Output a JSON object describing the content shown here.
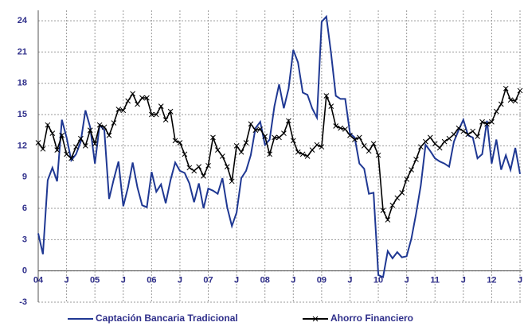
{
  "chart_data": {
    "type": "line",
    "categories": [
      "04",
      null,
      null,
      null,
      null,
      null,
      "J",
      null,
      null,
      null,
      null,
      null,
      "05",
      null,
      null,
      null,
      null,
      null,
      "J",
      null,
      null,
      null,
      null,
      null,
      "06",
      null,
      null,
      null,
      null,
      null,
      "J",
      null,
      null,
      null,
      null,
      null,
      "07",
      null,
      null,
      null,
      null,
      null,
      "J",
      null,
      null,
      null,
      null,
      null,
      "08",
      null,
      null,
      null,
      null,
      null,
      "J",
      null,
      null,
      null,
      null,
      null,
      "09",
      null,
      null,
      null,
      null,
      null,
      "J",
      null,
      null,
      null,
      null,
      null,
      "10",
      null,
      null,
      null,
      null,
      null,
      "J",
      null,
      null,
      null,
      null,
      null,
      "11",
      null,
      null,
      null,
      null,
      null,
      "J",
      null,
      null,
      null,
      null,
      null,
      "12",
      null,
      null,
      null,
      null,
      null,
      "J"
    ],
    "series": [
      {
        "name": "Captación Bancaria Tradicional",
        "color": "#1f3893",
        "marker": null,
        "values": [
          3.6,
          1.6,
          8.7,
          9.9,
          8.6,
          14.5,
          12.8,
          10.6,
          11.2,
          12.4,
          15.4,
          13.8,
          10.3,
          14.0,
          13.5,
          6.9,
          8.8,
          10.5,
          6.2,
          8.0,
          10.4,
          8.0,
          6.3,
          6.1,
          9.5,
          7.6,
          8.3,
          6.5,
          8.7,
          10.4,
          9.6,
          9.4,
          8.4,
          6.6,
          8.4,
          6.0,
          7.9,
          7.7,
          7.4,
          8.9,
          6.1,
          4.3,
          5.6,
          8.9,
          9.6,
          11.1,
          13.7,
          14.3,
          12.1,
          12.6,
          15.8,
          17.9,
          15.6,
          17.5,
          21.2,
          20.0,
          17.1,
          16.9,
          15.6,
          14.7,
          23.9,
          24.4,
          20.9,
          16.8,
          16.5,
          16.5,
          13.2,
          12.8,
          10.3,
          9.8,
          7.4,
          7.5,
          -0.4,
          -0.6,
          1.9,
          1.2,
          1.8,
          1.3,
          1.4,
          3.1,
          5.5,
          8.2,
          12.1,
          11.5,
          10.8,
          10.5,
          10.3,
          10.0,
          12.4,
          13.5,
          14.5,
          13.0,
          12.8,
          10.8,
          11.2,
          14.4,
          10.3,
          12.6,
          9.7,
          11.1,
          9.7,
          11.8,
          9.3
        ]
      },
      {
        "name": "Ahorro Financiero",
        "color": "#000000",
        "marker": "x",
        "values": [
          12.3,
          11.7,
          14.0,
          13.2,
          11.6,
          13.0,
          11.2,
          10.8,
          11.9,
          12.7,
          12.0,
          13.5,
          12.2,
          14.0,
          13.8,
          13.0,
          14.2,
          15.5,
          15.4,
          16.3,
          17.0,
          16.0,
          16.6,
          16.6,
          15.0,
          15.0,
          15.8,
          14.5,
          15.3,
          12.5,
          12.3,
          11.2,
          9.9,
          9.6,
          10.0,
          9.1,
          10.1,
          12.8,
          11.6,
          11.0,
          10.0,
          8.6,
          12.0,
          11.4,
          12.3,
          14.1,
          13.5,
          13.6,
          12.9,
          11.2,
          12.8,
          12.8,
          13.2,
          14.4,
          12.5,
          11.4,
          11.2,
          11.0,
          11.6,
          12.1,
          11.9,
          16.8,
          15.8,
          13.9,
          13.7,
          13.6,
          13.0,
          12.6,
          12.8,
          12.0,
          11.5,
          12.2,
          11.1,
          5.8,
          4.9,
          6.3,
          7.0,
          7.5,
          8.8,
          9.7,
          10.7,
          11.9,
          12.4,
          12.8,
          12.2,
          11.8,
          12.4,
          12.7,
          13.1,
          13.7,
          13.4,
          13.1,
          13.4,
          12.9,
          14.3,
          14.1,
          14.3,
          15.3,
          16.0,
          17.5,
          16.4,
          16.3,
          17.3
        ]
      }
    ],
    "ylim": [
      -3,
      25
    ],
    "yticks": [
      -3,
      0,
      3,
      6,
      9,
      12,
      15,
      18,
      21,
      24
    ],
    "grid": true,
    "legend": "bottom"
  }
}
